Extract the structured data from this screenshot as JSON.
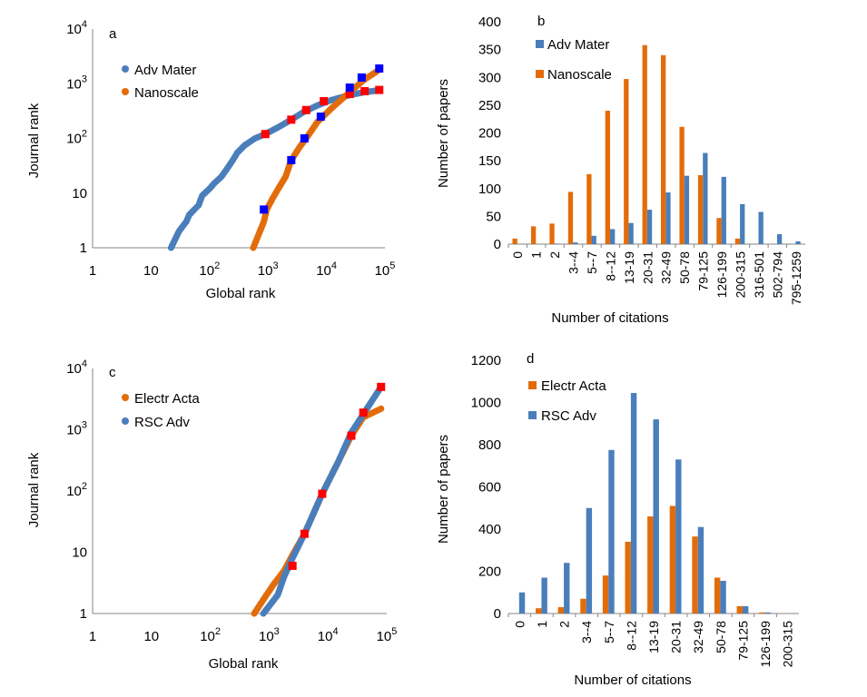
{
  "colors": {
    "blue": "#4a7ebb",
    "orange": "#e36c0a",
    "marker_red": "#ff0000",
    "marker_blue": "#0000ff",
    "axis": "#868686"
  },
  "panels": {
    "a": {
      "label": "a",
      "xlabel": "Global rank",
      "ylabel": "Journal rank",
      "legend": [
        "Adv Mater",
        "Nanoscale"
      ]
    },
    "b": {
      "label": "b",
      "xlabel": "Number of citations",
      "ylabel": "Number of papers",
      "legend": [
        "Adv Mater",
        "Nanoscale"
      ]
    },
    "c": {
      "label": "c",
      "xlabel": "Global rank",
      "ylabel": "Journal rank",
      "legend": [
        "Electr Acta",
        "RSC Adv"
      ]
    },
    "d": {
      "label": "d",
      "xlabel": "Number of citations",
      "ylabel": "Number of papers",
      "legend": [
        "Electr Acta",
        "RSC Adv"
      ]
    }
  },
  "chart_data": [
    {
      "id": "a",
      "type": "scatter",
      "xscale": "log",
      "yscale": "log",
      "xlim": [
        1,
        100000
      ],
      "ylim": [
        1,
        10000
      ],
      "x_ticks": [
        "1",
        "10",
        "10^2",
        "10^3",
        "10^4",
        "10^5"
      ],
      "y_ticks": [
        "1",
        "10",
        "10^2",
        "10^3",
        "10^4"
      ],
      "xlabel": "Global rank",
      "ylabel": "Journal rank",
      "legend_position": "top-left",
      "series": [
        {
          "name": "Adv Mater",
          "color": "#4a7ebb",
          "points": [
            [
              22,
              1
            ],
            [
              30,
              2
            ],
            [
              40,
              3
            ],
            [
              45,
              4
            ],
            [
              55,
              5
            ],
            [
              65,
              6
            ],
            [
              75,
              9
            ],
            [
              100,
              12
            ],
            [
              120,
              15
            ],
            [
              160,
              20
            ],
            [
              200,
              28
            ],
            [
              250,
              40
            ],
            [
              300,
              55
            ],
            [
              400,
              75
            ],
            [
              600,
              100
            ],
            [
              900,
              120
            ],
            [
              1500,
              160
            ],
            [
              2500,
              220
            ],
            [
              4000,
              300
            ],
            [
              7000,
              400
            ],
            [
              12000,
              500
            ],
            [
              25000,
              620
            ],
            [
              45000,
              700
            ],
            [
              80000,
              760
            ]
          ],
          "markers": [
            [
              900,
              120
            ],
            [
              2500,
              220
            ],
            [
              4500,
              330
            ],
            [
              9000,
              480
            ],
            [
              25000,
              650
            ],
            [
              45000,
              730
            ],
            [
              80000,
              770
            ]
          ],
          "marker_color": "#ff0000"
        },
        {
          "name": "Nanoscale",
          "color": "#e36c0a",
          "points": [
            [
              560,
              1
            ],
            [
              850,
              3
            ],
            [
              950,
              5
            ],
            [
              1200,
              8
            ],
            [
              1500,
              12
            ],
            [
              2000,
              20
            ],
            [
              2500,
              40
            ],
            [
              3500,
              70
            ],
            [
              4500,
              100
            ],
            [
              7000,
              200
            ],
            [
              12000,
              350
            ],
            [
              25000,
              700
            ],
            [
              45000,
              1200
            ],
            [
              80000,
              1800
            ]
          ],
          "markers": [
            [
              850,
              5
            ],
            [
              2500,
              40
            ],
            [
              4200,
              100
            ],
            [
              8000,
              250
            ],
            [
              25000,
              850
            ],
            [
              40000,
              1300
            ],
            [
              80000,
              1900
            ]
          ],
          "marker_color": "#0000ff"
        }
      ]
    },
    {
      "id": "b",
      "type": "bar",
      "categories": [
        "0",
        "1",
        "2",
        "3--4",
        "5--7",
        "8--12",
        "13-19",
        "20-31",
        "32-49",
        "50-78",
        "79-125",
        "126-199",
        "200-315",
        "316-501",
        "502-794",
        "795-1259"
      ],
      "xlabel": "Number of citations",
      "ylabel": "Number of papers",
      "ylim": [
        0,
        400
      ],
      "y_ticks": [
        0,
        50,
        100,
        150,
        200,
        250,
        300,
        350,
        400
      ],
      "legend_position": "top-left",
      "series": [
        {
          "name": "Adv Mater",
          "color": "#4a7ebb",
          "values": [
            0,
            0,
            1,
            3,
            15,
            27,
            38,
            62,
            93,
            123,
            164,
            121,
            72,
            58,
            18,
            5
          ]
        },
        {
          "name": "Nanoscale",
          "color": "#e36c0a",
          "values": [
            10,
            32,
            37,
            94,
            126,
            240,
            297,
            358,
            340,
            211,
            124,
            47,
            10,
            0,
            0,
            0
          ]
        }
      ]
    },
    {
      "id": "c",
      "type": "scatter",
      "xscale": "log",
      "yscale": "log",
      "xlim": [
        1,
        100000
      ],
      "ylim": [
        1,
        10000
      ],
      "x_ticks": [
        "1",
        "10",
        "10^2",
        "10^3",
        "10^4",
        "10^5"
      ],
      "y_ticks": [
        "1",
        "10",
        "10^2",
        "10^3",
        "10^4"
      ],
      "xlabel": "Global rank",
      "ylabel": "Journal rank",
      "legend_position": "top-left",
      "series": [
        {
          "name": "Electr Acta",
          "color": "#e36c0a",
          "points": [
            [
              560,
              1
            ],
            [
              900,
              2
            ],
            [
              1200,
              3
            ],
            [
              1800,
              5
            ],
            [
              2500,
              9
            ],
            [
              4000,
              20
            ],
            [
              8000,
              90
            ],
            [
              25000,
              800
            ],
            [
              40000,
              1600
            ],
            [
              80000,
              2200
            ]
          ],
          "markers": [
            [
              2500,
              6
            ],
            [
              4000,
              20
            ],
            [
              8000,
              90
            ],
            [
              25000,
              800
            ],
            [
              40000,
              1900
            ],
            [
              80000,
              5000
            ]
          ],
          "marker_color": "#ff0000"
        },
        {
          "name": "RSC Adv",
          "color": "#4a7ebb",
          "points": [
            [
              800,
              1
            ],
            [
              1400,
              2
            ],
            [
              1800,
              4
            ],
            [
              2500,
              8
            ],
            [
              4000,
              20
            ],
            [
              8000,
              90
            ],
            [
              15000,
              300
            ],
            [
              25000,
              900
            ],
            [
              40000,
              1800
            ],
            [
              80000,
              5000
            ]
          ]
        }
      ]
    },
    {
      "id": "d",
      "type": "bar",
      "categories": [
        "0",
        "1",
        "2",
        "3--4",
        "5--7",
        "8--12",
        "13-19",
        "20-31",
        "32-49",
        "50-78",
        "79-125",
        "126-199",
        "200-315"
      ],
      "xlabel": "Number of citations",
      "ylabel": "Number of papers",
      "ylim": [
        0,
        1200
      ],
      "y_ticks": [
        0,
        200,
        400,
        600,
        800,
        1000,
        1200
      ],
      "legend_position": "top-left",
      "series": [
        {
          "name": "Electr Acta",
          "color": "#e36c0a",
          "values": [
            0,
            25,
            30,
            70,
            180,
            340,
            460,
            510,
            365,
            170,
            35,
            5,
            0
          ]
        },
        {
          "name": "RSC Adv",
          "color": "#4a7ebb",
          "values": [
            100,
            170,
            240,
            500,
            775,
            1045,
            920,
            730,
            410,
            155,
            35,
            5,
            0
          ]
        }
      ]
    }
  ]
}
